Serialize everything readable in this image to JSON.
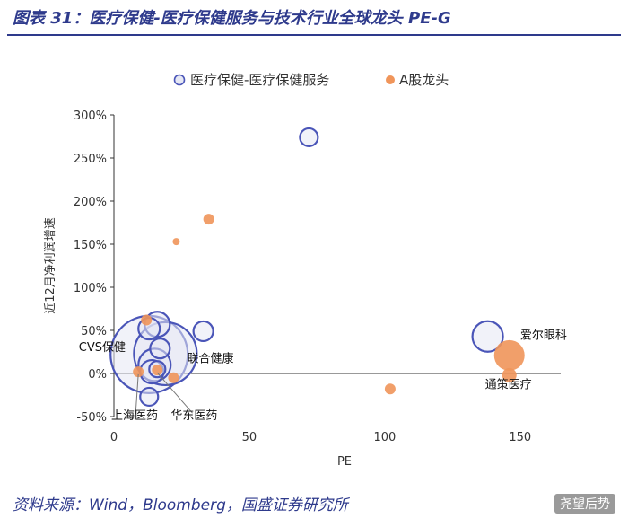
{
  "figure": {
    "title": "图表 31：医疗保健-医疗保健服务与技术行业全球龙头 PE-G",
    "source": "资料来源：Wind，Bloomberg，国盛证券研究所",
    "watermark": "尧望后势"
  },
  "chart_data": {
    "type": "scatter",
    "xlabel": "PE",
    "ylabel": "近12月净利润增速",
    "xlim": [
      0,
      160
    ],
    "ylim": [
      -50,
      300
    ],
    "x_ticks": [
      "0",
      "50",
      "100",
      "150"
    ],
    "y_ticks": [
      "-50%",
      "0%",
      "50%",
      "100%",
      "150%",
      "200%",
      "250%",
      "300%"
    ],
    "legend_position": "top",
    "series": [
      {
        "name": "医疗保健-医疗保健服务",
        "style": "hollow-circle",
        "color": "#4a55b8",
        "fill": "#e6e8f4",
        "points": [
          {
            "x": 72,
            "y": 274,
            "size": 10
          },
          {
            "x": 138,
            "y": 43,
            "size": 17
          },
          {
            "x": 33,
            "y": 49,
            "size": 11
          },
          {
            "x": 16,
            "y": 57,
            "size": 14
          },
          {
            "x": 13,
            "y": 52,
            "size": 12
          },
          {
            "x": 13,
            "y": 22,
            "size": 43
          },
          {
            "x": 19,
            "y": 23,
            "size": 35
          },
          {
            "x": 17,
            "y": 29,
            "size": 11
          },
          {
            "x": 15,
            "y": 10,
            "size": 18
          },
          {
            "x": 14,
            "y": 2,
            "size": 13
          },
          {
            "x": 16,
            "y": 5,
            "size": 9
          },
          {
            "x": 13,
            "y": -27,
            "size": 10
          }
        ]
      },
      {
        "name": "A股龙头",
        "style": "filled-circle",
        "color": "#f0955a",
        "points": [
          {
            "x": 35,
            "y": 179,
            "size": 6
          },
          {
            "x": 23,
            "y": 153,
            "size": 4
          },
          {
            "x": 12,
            "y": 62,
            "size": 6
          },
          {
            "x": 9,
            "y": 2,
            "size": 6
          },
          {
            "x": 16,
            "y": 4,
            "size": 6
          },
          {
            "x": 22,
            "y": -5,
            "size": 6
          },
          {
            "x": 102,
            "y": -18,
            "size": 6
          },
          {
            "x": 146,
            "y": 21,
            "size": 17
          },
          {
            "x": 146,
            "y": -2,
            "size": 8
          }
        ]
      }
    ],
    "annotations": [
      {
        "text": "爱尔眼科",
        "x": 150,
        "y": 40
      },
      {
        "text": "CVS保健",
        "x": -13,
        "y": 26
      },
      {
        "text": "联合健康",
        "x": 27,
        "y": 13
      },
      {
        "text": "通策医疗",
        "x": 137,
        "y": -17
      },
      {
        "text": "上海医药",
        "x": -1,
        "y": -53
      },
      {
        "text": "华东医药",
        "x": 21,
        "y": -53
      }
    ]
  }
}
